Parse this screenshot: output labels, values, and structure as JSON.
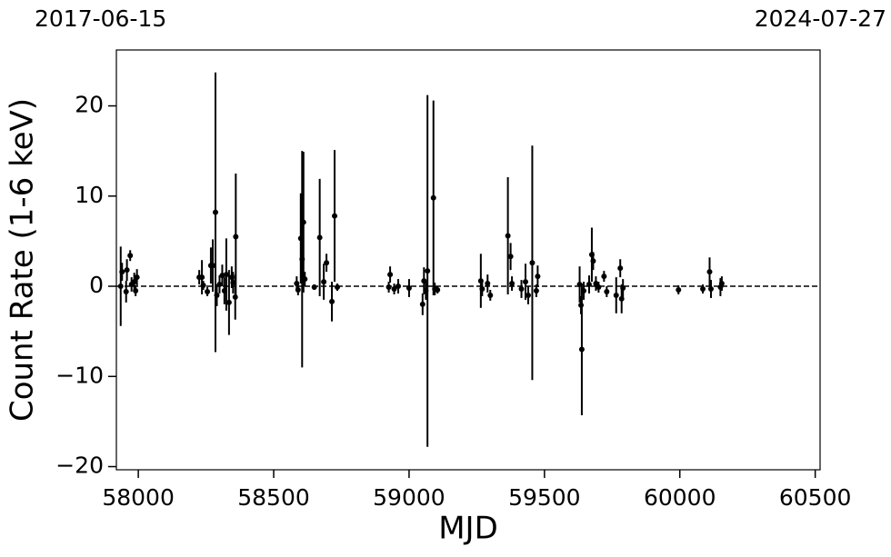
{
  "chart_data": {
    "type": "scatter",
    "start_label": "2017-06-15",
    "end_label": "2024-07-27",
    "x_label": "MJD",
    "y_label": "Count Rate (1-6 keV)",
    "xlim": [
      57919,
      60518
    ],
    "ylim": [
      -20.35,
      26.2
    ],
    "xticks": [
      58000,
      58500,
      59000,
      59500,
      60000,
      60500
    ],
    "yticks": [
      {
        "value": -20,
        "label": "−20"
      },
      {
        "value": -10,
        "label": "−10"
      },
      0,
      10,
      20
    ],
    "hline": 0,
    "color": "#000000",
    "x": [
      57935,
      57940,
      57955,
      57958,
      57970,
      57975,
      57985,
      57990,
      57995,
      58225,
      58235,
      58240,
      58255,
      58268,
      58275,
      58285,
      58290,
      58300,
      58310,
      58318,
      58325,
      58335,
      58345,
      58350,
      58358,
      58360,
      58585,
      58590,
      58600,
      58605,
      58610,
      58615,
      58650,
      58670,
      58685,
      58695,
      58715,
      58725,
      58735,
      58925,
      58930,
      58945,
      58960,
      59000,
      59050,
      59055,
      59062,
      59068,
      59090,
      59095,
      59105,
      59265,
      59270,
      59290,
      59300,
      59365,
      59375,
      59380,
      59415,
      59430,
      59440,
      59455,
      59470,
      59475,
      59630,
      59635,
      59638,
      59645,
      59665,
      59675,
      59680,
      59690,
      59700,
      59720,
      59730,
      59765,
      59780,
      59785,
      59790,
      59995,
      60085,
      60110,
      60115,
      60150,
      60155
    ],
    "values": [
      0,
      1.6,
      -0.6,
      1.8,
      3.4,
      0.2,
      0.5,
      -0.5,
      1.0,
      1.0,
      1.0,
      0.1,
      -0.6,
      2.3,
      2.3,
      8.2,
      -1.0,
      0.2,
      1.2,
      -0.5,
      1.3,
      -1.8,
      1.0,
      0.4,
      -1.2,
      5.5,
      0.3,
      -0.4,
      5.3,
      3.0,
      7.1,
      0.8,
      -0.1,
      5.4,
      0.5,
      2.6,
      -1.7,
      7.8,
      -0.1,
      -0.1,
      1.3,
      -0.3,
      0.0,
      -0.2,
      -2.0,
      0.6,
      -0.5,
      1.7,
      9.8,
      -0.3,
      -0.4,
      0.6,
      -0.3,
      0.3,
      -1.0,
      5.6,
      3.3,
      0.3,
      -0.3,
      0.5,
      -1.0,
      2.6,
      -0.5,
      1.1,
      0.2,
      -2.1,
      -7.0,
      -0.5,
      0.2,
      3.5,
      2.8,
      0.3,
      -0.1,
      1.1,
      -0.6,
      -1.0,
      2.0,
      -1.4,
      -0.2,
      -0.4,
      -0.3,
      1.6,
      -0.3,
      -0.1,
      0.3
    ],
    "errors": [
      4.4,
      1.0,
      1.2,
      1.2,
      0.6,
      0.8,
      1.0,
      0.6,
      0.9,
      0.8,
      1.9,
      0.5,
      0.5,
      2.0,
      2.9,
      15.5,
      1.2,
      1.0,
      1.2,
      1.5,
      4.0,
      3.6,
      1.2,
      1.2,
      2.5,
      7.0,
      0.8,
      0.6,
      5.0,
      12.0,
      7.8,
      0.8,
      0.3,
      6.5,
      2.0,
      1.0,
      2.2,
      7.3,
      0.4,
      0.6,
      0.9,
      0.6,
      0.8,
      1.0,
      1.2,
      1.5,
      1.0,
      19.5,
      10.8,
      0.7,
      0.4,
      3.0,
      0.8,
      1.0,
      0.6,
      6.5,
      1.5,
      0.8,
      1.0,
      2.0,
      1.0,
      13.0,
      0.7,
      1.2,
      2.0,
      1.0,
      7.3,
      1.0,
      1.0,
      3.0,
      1.0,
      0.8,
      0.6,
      0.6,
      0.6,
      2.0,
      1.0,
      1.6,
      1.0,
      0.5,
      0.5,
      1.6,
      1.0,
      1.0,
      0.8
    ]
  }
}
